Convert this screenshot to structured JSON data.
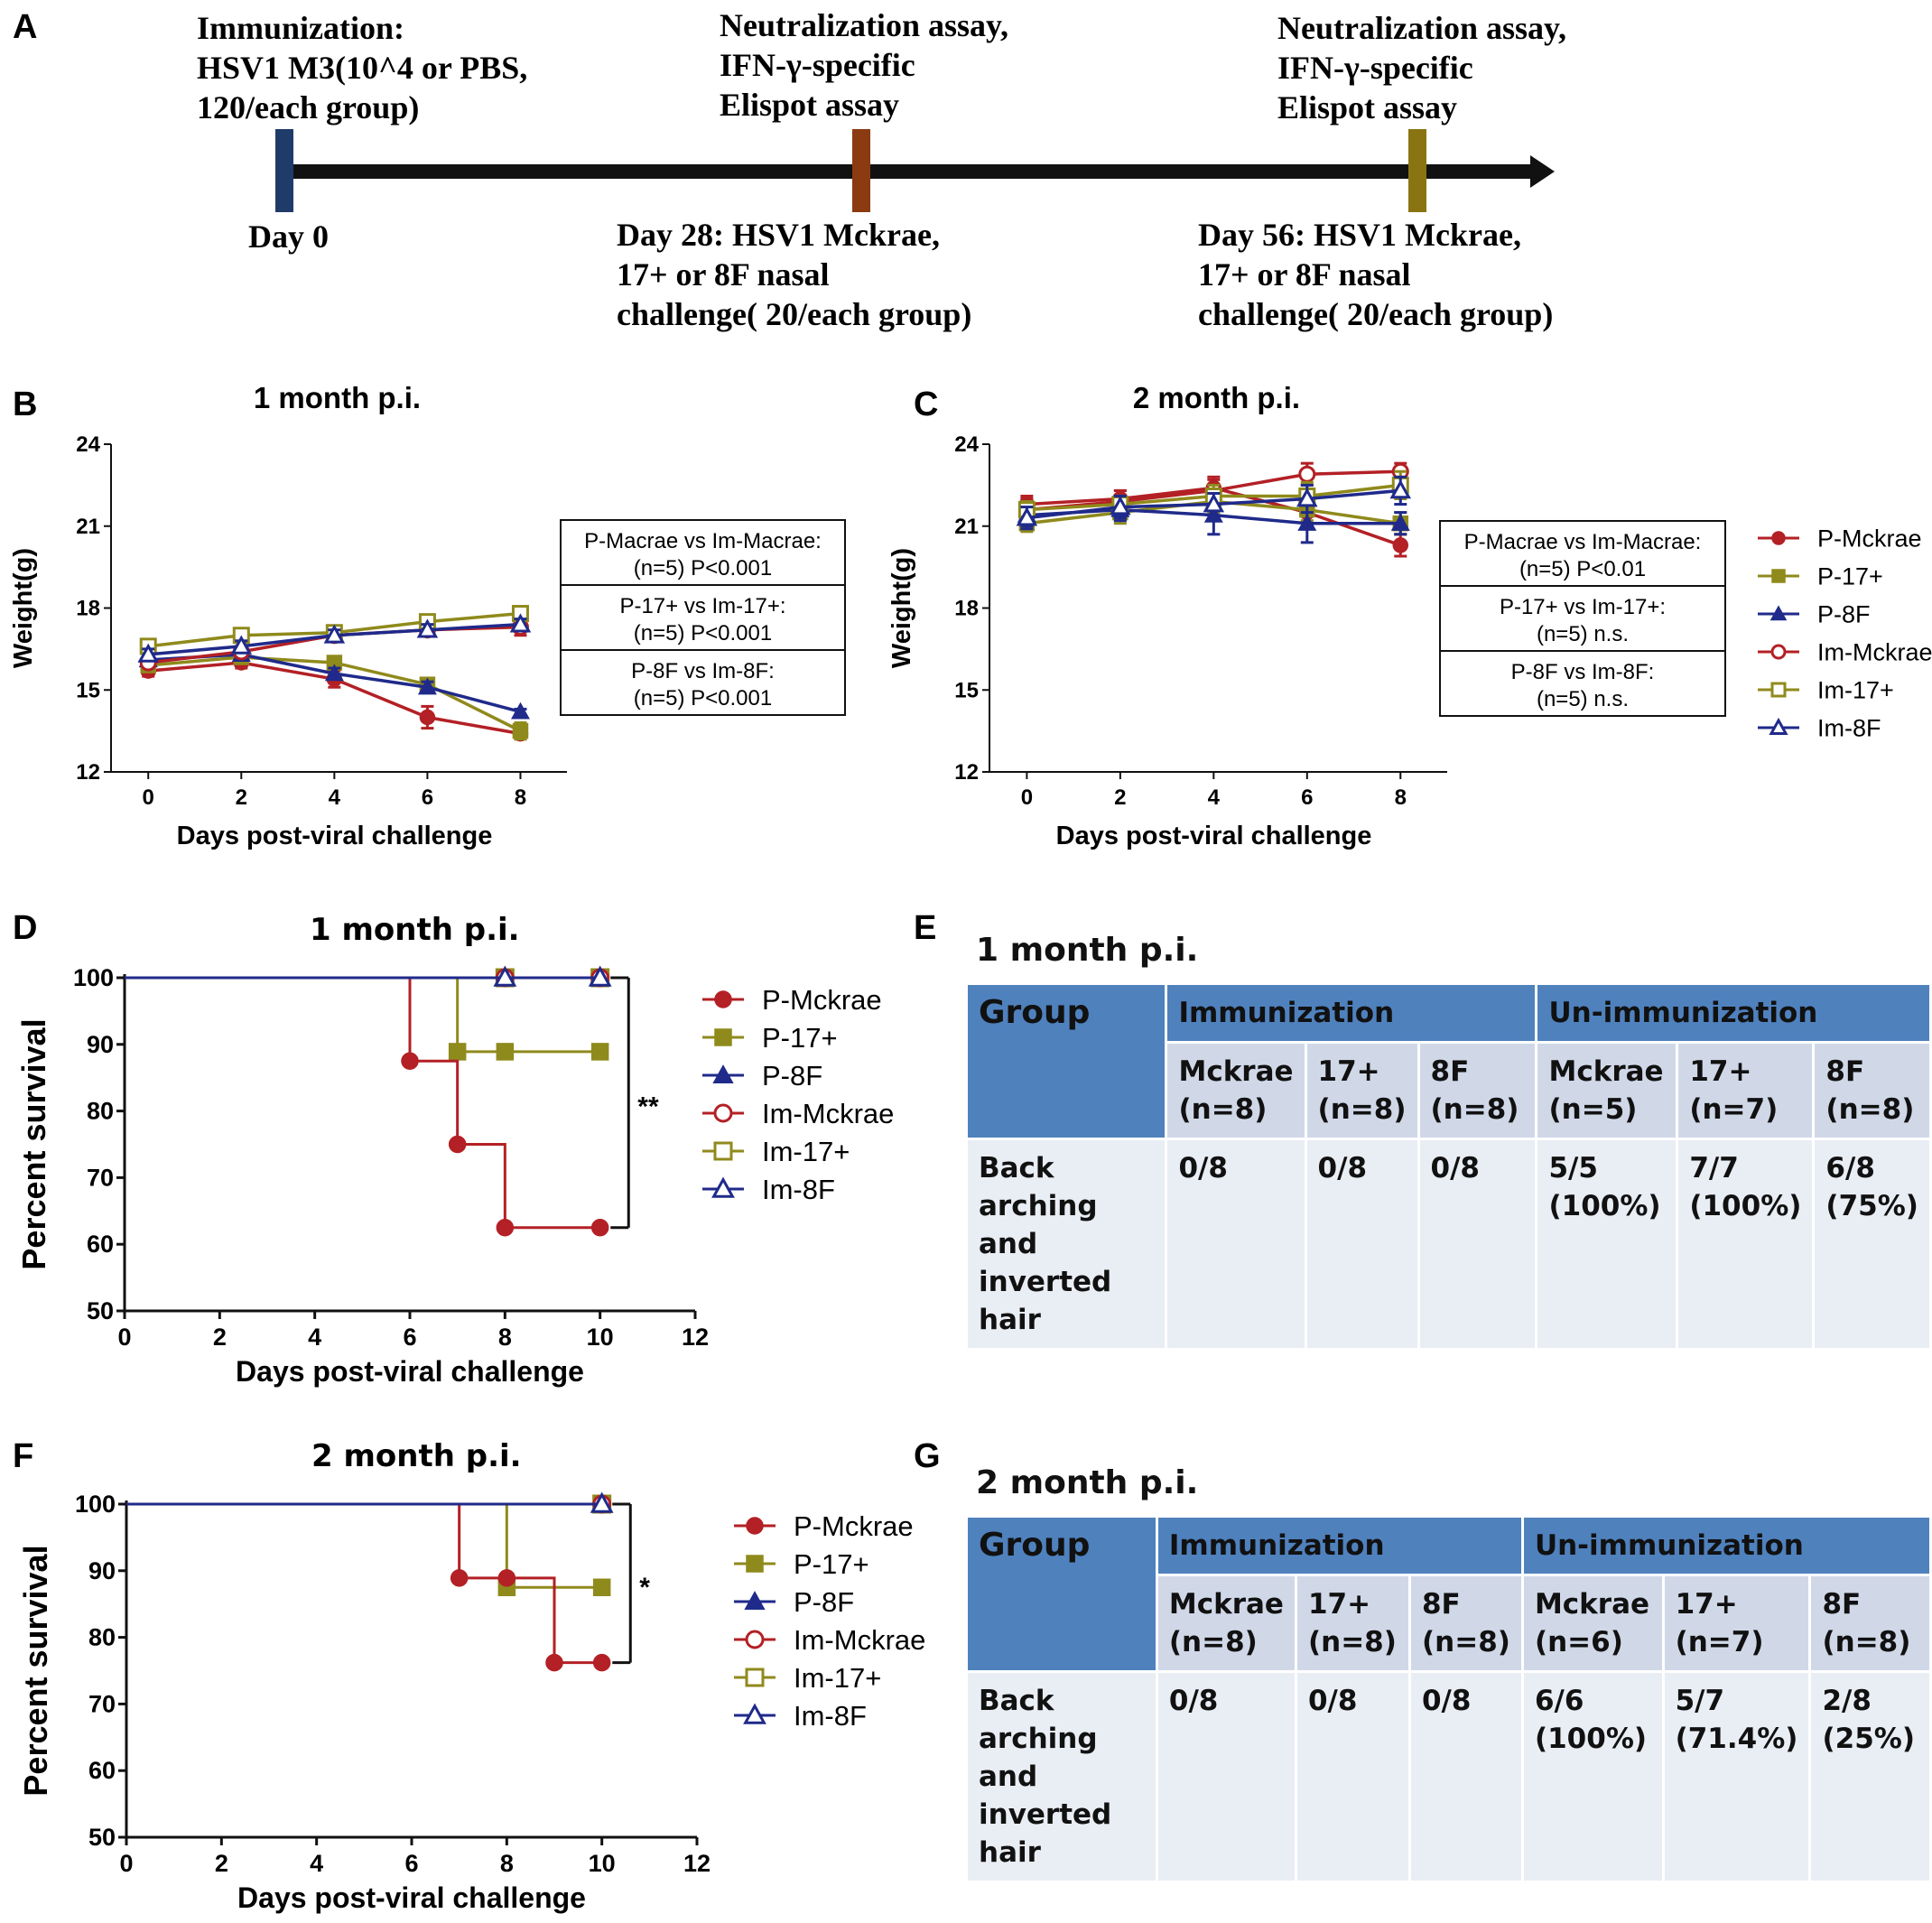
{
  "panel_letters": {
    "A": "A",
    "B": "B",
    "C": "C",
    "D": "D",
    "E": "E",
    "F": "F",
    "G": "G"
  },
  "colors": {
    "mckrae": "#b32025",
    "p17": "#8f8a1c",
    "p8f": "#1f2a8a",
    "timeline_day0": "#1f3b6a",
    "timeline_day28": "#8b3a12",
    "timeline_day56": "#8a7412",
    "table_header": "#4f81bd",
    "table_sub": "#d0d8e8",
    "table_row": "#e9edf4"
  },
  "timeline": {
    "immunization_lines": [
      "Immunization:",
      "HSV1 M3(10^4 or PBS,",
      "120/each group)"
    ],
    "assay28_lines": [
      "Neutralization assay,",
      "IFN-γ-specific",
      "Elispot assay"
    ],
    "assay56_lines": [
      "Neutralization assay,",
      "IFN-γ-specific",
      "Elispot assay"
    ],
    "day0": "Day 0",
    "day28_lines": [
      "Day 28: HSV1 Mckrae,",
      "17+ or 8F nasal",
      "challenge( 20/each group)"
    ],
    "day56_lines": [
      "Day 56: HSV1 Mckrae,",
      "17+ or 8F nasal",
      "challenge( 20/each group)"
    ]
  },
  "chart_data": [
    {
      "id": "B",
      "type": "line",
      "title": "1 month p.i.",
      "xlabel": "Days post-viral challenge",
      "ylabel": "Weight(g)",
      "x": [
        0,
        2,
        4,
        6,
        8
      ],
      "xticks": [
        "0",
        "2",
        "4",
        "6",
        "8"
      ],
      "yticks": [
        "12",
        "15",
        "18",
        "21",
        "24"
      ],
      "ylim": [
        12,
        24
      ],
      "series": [
        {
          "name": "P-Mckrae",
          "values": [
            15.7,
            16.0,
            15.4,
            14.0,
            13.4
          ],
          "err": [
            0.2,
            0.2,
            0.3,
            0.4,
            0.2
          ]
        },
        {
          "name": "P-17+",
          "values": [
            15.9,
            16.2,
            16.0,
            15.2,
            13.5
          ],
          "err": [
            0.2,
            0.2,
            0.2,
            0.2,
            0.3
          ]
        },
        {
          "name": "P-8F",
          "values": [
            16.1,
            16.3,
            15.6,
            15.1,
            14.2
          ],
          "err": [
            0.2,
            0.2,
            0.2,
            0.2,
            0.1
          ]
        },
        {
          "name": "Im-Mckrae",
          "values": [
            16.0,
            16.4,
            17.0,
            17.2,
            17.3
          ],
          "err": [
            0.2,
            0.2,
            0.2,
            0.2,
            0.3
          ]
        },
        {
          "name": "Im-17+",
          "values": [
            16.6,
            17.0,
            17.1,
            17.5,
            17.8
          ],
          "err": [
            0.2,
            0.2,
            0.2,
            0.2,
            0.2
          ]
        },
        {
          "name": "Im-8F",
          "values": [
            16.3,
            16.6,
            17.0,
            17.2,
            17.4
          ],
          "err": [
            0.2,
            0.2,
            0.2,
            0.2,
            0.2
          ]
        }
      ],
      "stats_box": [
        [
          "P-Macrae vs Im-Macrae:",
          "(n=5) P<0.001"
        ],
        [
          "P-17+ vs Im-17+:",
          "(n=5) P<0.001"
        ],
        [
          "P-8F vs Im-8F:",
          "(n=5) P<0.001"
        ]
      ]
    },
    {
      "id": "C",
      "type": "line",
      "title": "2 month p.i.",
      "xlabel": "Days post-viral challenge",
      "ylabel": "Weight(g)",
      "x": [
        0,
        2,
        4,
        6,
        8
      ],
      "xticks": [
        "0",
        "2",
        "4",
        "6",
        "8"
      ],
      "yticks": [
        "12",
        "15",
        "18",
        "21",
        "24"
      ],
      "ylim": [
        12,
        24
      ],
      "series": [
        {
          "name": "P-Mckrae",
          "values": [
            21.8,
            22.0,
            22.4,
            21.5,
            20.3
          ],
          "err": [
            0.3,
            0.3,
            0.4,
            0.5,
            0.4
          ]
        },
        {
          "name": "P-17+",
          "values": [
            21.1,
            21.5,
            21.9,
            21.6,
            21.1
          ],
          "err": [
            0.3,
            0.4,
            0.4,
            0.4,
            0.4
          ]
        },
        {
          "name": "P-8F",
          "values": [
            21.4,
            21.6,
            21.4,
            21.1,
            21.1
          ],
          "err": [
            0.4,
            0.4,
            0.7,
            0.7,
            0.4
          ]
        },
        {
          "name": "Im-Mckrae",
          "values": [
            21.6,
            21.9,
            22.3,
            22.9,
            23.0
          ],
          "err": [
            0.4,
            0.4,
            0.4,
            0.4,
            0.3
          ]
        },
        {
          "name": "Im-17+",
          "values": [
            21.6,
            21.8,
            22.1,
            22.1,
            22.5
          ],
          "err": [
            0.3,
            0.3,
            0.4,
            0.5,
            0.5
          ]
        },
        {
          "name": "Im-8F",
          "values": [
            21.3,
            21.7,
            21.8,
            22.0,
            22.3
          ],
          "err": [
            0.4,
            0.4,
            0.4,
            0.5,
            0.5
          ]
        }
      ],
      "legend": [
        "P-Mckrae",
        "P-17+",
        "P-8F",
        "Im-Mckrae",
        "Im-17+",
        "Im-8F"
      ],
      "stats_box": [
        [
          "P-Macrae vs Im-Macrae:",
          "(n=5) P<0.01"
        ],
        [
          "P-17+ vs Im-17+:",
          "(n=5) n.s."
        ],
        [
          "P-8F vs Im-8F:",
          "(n=5) n.s."
        ]
      ]
    },
    {
      "id": "D",
      "type": "line",
      "subtype": "survival-step",
      "title": "1 month p.i.",
      "xlabel": "Days post-viral challenge",
      "ylabel": "Percent survival",
      "xticks": [
        "0",
        "2",
        "4",
        "6",
        "8",
        "10",
        "12"
      ],
      "xlim": [
        0,
        12
      ],
      "yticks": [
        "50",
        "60",
        "70",
        "80",
        "90",
        "100"
      ],
      "ylim": [
        50,
        100
      ],
      "series": [
        {
          "name": "P-Mckrae",
          "steps": [
            [
              0,
              100
            ],
            [
              6,
              87.5
            ],
            [
              7,
              75
            ],
            [
              8,
              62.5
            ]
          ],
          "end_x": 10,
          "markers": [
            [
              6,
              87.5
            ],
            [
              7,
              75
            ],
            [
              8,
              62.5
            ],
            [
              10,
              62.5
            ]
          ]
        },
        {
          "name": "P-17+",
          "steps": [
            [
              0,
              100
            ],
            [
              7,
              88.9
            ]
          ],
          "end_x": 10,
          "markers": [
            [
              7,
              88.9
            ],
            [
              8,
              88.9
            ],
            [
              10,
              88.9
            ]
          ]
        },
        {
          "name": "P-8F",
          "steps": [
            [
              0,
              100
            ]
          ],
          "end_x": 10,
          "markers": [
            [
              8,
              100
            ],
            [
              10,
              100
            ]
          ]
        },
        {
          "name": "Im-Mckrae",
          "steps": [
            [
              0,
              100
            ]
          ],
          "end_x": 10,
          "markers": [
            [
              8,
              100
            ],
            [
              10,
              100
            ]
          ]
        },
        {
          "name": "Im-17+",
          "steps": [
            [
              0,
              100
            ]
          ],
          "end_x": 10,
          "markers": [
            [
              8,
              100
            ],
            [
              10,
              100
            ]
          ]
        },
        {
          "name": "Im-8F",
          "steps": [
            [
              0,
              100
            ]
          ],
          "end_x": 10,
          "markers": [
            [
              8,
              100
            ],
            [
              10,
              100
            ]
          ]
        }
      ],
      "significance": "**",
      "bracket_range": [
        62.5,
        100
      ],
      "legend": [
        "P-Mckrae",
        "P-17+",
        "P-8F",
        "Im-Mckrae",
        "Im-17+",
        "Im-8F"
      ]
    },
    {
      "id": "F",
      "type": "line",
      "subtype": "survival-step",
      "title": "2 month p.i.",
      "xlabel": "Days post-viral challenge",
      "ylabel": "Percent survival",
      "xticks": [
        "0",
        "2",
        "4",
        "6",
        "8",
        "10",
        "12"
      ],
      "xlim": [
        0,
        12
      ],
      "yticks": [
        "50",
        "60",
        "70",
        "80",
        "90",
        "100"
      ],
      "ylim": [
        50,
        100
      ],
      "series": [
        {
          "name": "P-Mckrae",
          "steps": [
            [
              0,
              100
            ],
            [
              7,
              88.9
            ],
            [
              9,
              76.2
            ]
          ],
          "end_x": 10,
          "markers": [
            [
              7,
              88.9
            ],
            [
              8,
              88.9
            ],
            [
              9,
              76.2
            ],
            [
              10,
              76.2
            ]
          ]
        },
        {
          "name": "P-17+",
          "steps": [
            [
              0,
              100
            ],
            [
              8,
              87.5
            ]
          ],
          "end_x": 10,
          "markers": [
            [
              8,
              87.5
            ],
            [
              10,
              87.5
            ]
          ]
        },
        {
          "name": "P-8F",
          "steps": [
            [
              0,
              100
            ]
          ],
          "end_x": 10,
          "markers": [
            [
              10,
              100
            ]
          ]
        },
        {
          "name": "Im-Mckrae",
          "steps": [
            [
              0,
              100
            ]
          ],
          "end_x": 10,
          "markers": [
            [
              10,
              100
            ]
          ]
        },
        {
          "name": "Im-17+",
          "steps": [
            [
              0,
              100
            ]
          ],
          "end_x": 10,
          "markers": [
            [
              10,
              100
            ]
          ]
        },
        {
          "name": "Im-8F",
          "steps": [
            [
              0,
              100
            ]
          ],
          "end_x": 10,
          "markers": [
            [
              10,
              100
            ]
          ]
        }
      ],
      "significance": "*",
      "bracket_range": [
        76.2,
        100
      ],
      "legend": [
        "P-Mckrae",
        "P-17+",
        "P-8F",
        "Im-Mckrae",
        "Im-17+",
        "Im-8F"
      ]
    },
    {
      "id": "E",
      "type": "table",
      "title": "1 month p.i.",
      "group_label": "Group",
      "col_groups": [
        "Immunization",
        "Un-immunization"
      ],
      "subheaders": [
        [
          "Mckrae",
          "(n=8)"
        ],
        [
          "17+",
          "(n=8)"
        ],
        [
          "8F",
          "(n=8)"
        ],
        [
          "Mckrae",
          "(n=5)"
        ],
        [
          "17+",
          "(n=7)"
        ],
        [
          "8F",
          "(n=8)"
        ]
      ],
      "row_label": [
        "Back arching",
        "and inverted",
        "hair"
      ],
      "cells": [
        [
          "0/8"
        ],
        [
          "0/8"
        ],
        [
          "0/8"
        ],
        [
          "5/5",
          "(100%)"
        ],
        [
          "7/7",
          "(100%)"
        ],
        [
          "6/8",
          "(75%)"
        ]
      ]
    },
    {
      "id": "G",
      "type": "table",
      "title": "2 month p.i.",
      "group_label": "Group",
      "col_groups": [
        "Immunization",
        "Un-immunization"
      ],
      "subheaders": [
        [
          "Mckrae",
          "(n=8)"
        ],
        [
          "17+",
          "(n=8)"
        ],
        [
          "8F",
          "(n=8)"
        ],
        [
          "Mckrae",
          "(n=6)"
        ],
        [
          "17+",
          "(n=7)"
        ],
        [
          "8F",
          "(n=8)"
        ]
      ],
      "row_label": [
        "Back arching",
        "and inverted",
        "hair"
      ],
      "cells": [
        [
          "0/8"
        ],
        [
          "0/8"
        ],
        [
          "0/8"
        ],
        [
          "6/6",
          "(100%)"
        ],
        [
          "5/7",
          "(71.4%)"
        ],
        [
          "2/8",
          "(25%)"
        ]
      ]
    }
  ]
}
